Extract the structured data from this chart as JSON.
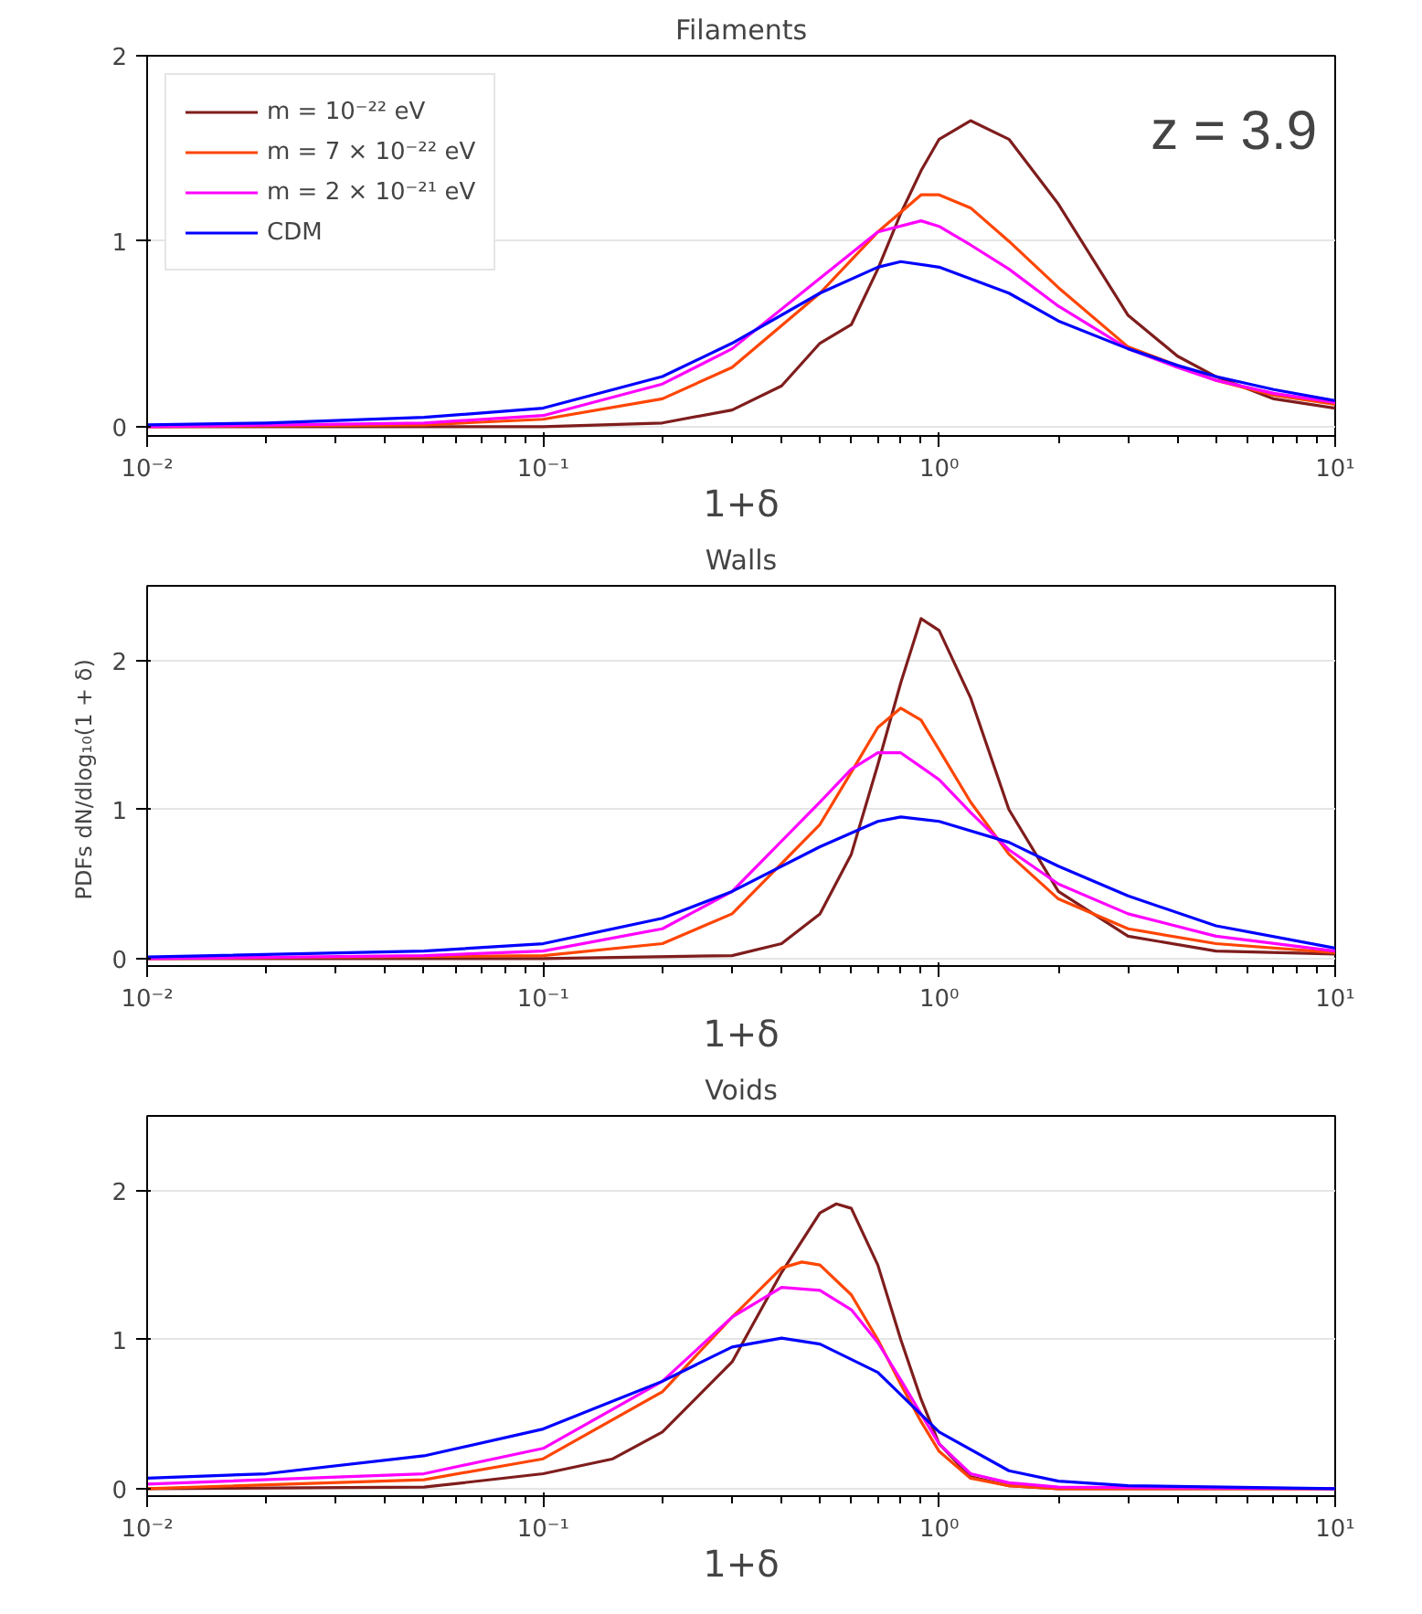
{
  "chart_data": [
    {
      "type": "line",
      "title": "Filaments",
      "xlabel": "1+δ",
      "log": "x",
      "xlim": [
        0.01,
        10
      ],
      "ylim": [
        -0.05,
        2
      ],
      "xticks": [
        {
          "value": 0.01,
          "label": "10⁻²"
        },
        {
          "value": 0.1,
          "label": "10⁻¹"
        },
        {
          "value": 1,
          "label": "10⁰"
        },
        {
          "value": 10,
          "label": "10¹"
        }
      ],
      "yticks": [
        0,
        1,
        2
      ],
      "grid": "y",
      "legend": "top left",
      "annotations": [
        "z = 3.9"
      ],
      "series": [
        {
          "name": "m = 10⁻²² eV",
          "color": "#7f1d1d",
          "x": [
            0.01,
            0.1,
            0.2,
            0.3,
            0.4,
            0.5,
            0.6,
            0.7,
            0.8,
            0.9,
            1.0,
            1.2,
            1.5,
            2,
            3,
            4,
            5,
            7,
            10
          ],
          "values": [
            0,
            0,
            0.02,
            0.09,
            0.22,
            0.45,
            0.55,
            0.85,
            1.15,
            1.38,
            1.55,
            1.65,
            1.55,
            1.2,
            0.6,
            0.38,
            0.27,
            0.15,
            0.1
          ]
        },
        {
          "name": "m = 7 × 10⁻²² eV",
          "color": "#ff4500",
          "x": [
            0.01,
            0.05,
            0.1,
            0.2,
            0.3,
            0.5,
            0.7,
            0.9,
            1.0,
            1.2,
            1.5,
            2,
            3,
            4,
            5,
            7,
            10
          ],
          "values": [
            0,
            0.01,
            0.04,
            0.15,
            0.32,
            0.72,
            1.05,
            1.25,
            1.25,
            1.18,
            1.0,
            0.75,
            0.43,
            0.33,
            0.25,
            0.17,
            0.12
          ]
        },
        {
          "name": "m = 2 × 10⁻²¹ eV",
          "color": "#ff00ff",
          "x": [
            0.01,
            0.05,
            0.1,
            0.2,
            0.3,
            0.5,
            0.7,
            0.9,
            1.0,
            1.2,
            1.5,
            2,
            3,
            4,
            5,
            7,
            10
          ],
          "values": [
            0,
            0.02,
            0.06,
            0.23,
            0.42,
            0.8,
            1.05,
            1.11,
            1.08,
            0.98,
            0.85,
            0.65,
            0.42,
            0.32,
            0.25,
            0.18,
            0.13
          ]
        },
        {
          "name": "CDM",
          "color": "#0000ff",
          "x": [
            0.01,
            0.02,
            0.05,
            0.1,
            0.2,
            0.3,
            0.5,
            0.7,
            0.8,
            1.0,
            1.5,
            2,
            3,
            4,
            5,
            7,
            10
          ],
          "values": [
            0.01,
            0.02,
            0.05,
            0.1,
            0.27,
            0.45,
            0.72,
            0.86,
            0.89,
            0.86,
            0.72,
            0.57,
            0.42,
            0.33,
            0.27,
            0.2,
            0.14
          ]
        }
      ]
    },
    {
      "type": "line",
      "title": "Walls",
      "xlabel": "1+δ",
      "ylabel": "PDFs  dN/dlog₁₀(1 + δ)",
      "log": "x",
      "xlim": [
        0.01,
        10
      ],
      "ylim": [
        -0.05,
        2.5
      ],
      "xticks": [
        {
          "value": 0.01,
          "label": "10⁻²"
        },
        {
          "value": 0.1,
          "label": "10⁻¹"
        },
        {
          "value": 1,
          "label": "10⁰"
        },
        {
          "value": 10,
          "label": "10¹"
        }
      ],
      "yticks": [
        0,
        1,
        2
      ],
      "grid": "y",
      "series": [
        {
          "color": "#7f1d1d",
          "x": [
            0.01,
            0.1,
            0.3,
            0.4,
            0.5,
            0.6,
            0.7,
            0.8,
            0.9,
            1.0,
            1.2,
            1.5,
            2,
            3,
            5,
            10
          ],
          "values": [
            0,
            0,
            0.02,
            0.1,
            0.3,
            0.7,
            1.3,
            1.85,
            2.28,
            2.2,
            1.75,
            1.0,
            0.45,
            0.15,
            0.05,
            0.03
          ]
        },
        {
          "color": "#ff4500",
          "x": [
            0.01,
            0.1,
            0.2,
            0.3,
            0.5,
            0.6,
            0.7,
            0.8,
            0.9,
            1.0,
            1.2,
            1.5,
            2,
            3,
            5,
            10
          ],
          "values": [
            0,
            0.02,
            0.1,
            0.3,
            0.9,
            1.25,
            1.55,
            1.68,
            1.6,
            1.4,
            1.05,
            0.7,
            0.4,
            0.2,
            0.1,
            0.04
          ]
        },
        {
          "color": "#ff00ff",
          "x": [
            0.01,
            0.05,
            0.1,
            0.2,
            0.3,
            0.5,
            0.6,
            0.7,
            0.8,
            1.0,
            1.2,
            1.5,
            2,
            3,
            5,
            10
          ],
          "values": [
            0,
            0.02,
            0.05,
            0.2,
            0.45,
            1.05,
            1.27,
            1.38,
            1.38,
            1.2,
            0.98,
            0.73,
            0.5,
            0.3,
            0.15,
            0.05
          ]
        },
        {
          "color": "#0000ff",
          "x": [
            0.01,
            0.05,
            0.1,
            0.2,
            0.3,
            0.5,
            0.7,
            0.8,
            1.0,
            1.5,
            2,
            3,
            5,
            10
          ],
          "values": [
            0.01,
            0.05,
            0.1,
            0.27,
            0.45,
            0.75,
            0.92,
            0.95,
            0.92,
            0.78,
            0.62,
            0.42,
            0.22,
            0.07
          ]
        }
      ]
    },
    {
      "type": "line",
      "title": "Voids",
      "xlabel": "1+δ",
      "log": "x",
      "xlim": [
        0.01,
        10
      ],
      "ylim": [
        -0.05,
        2.5
      ],
      "xticks": [
        {
          "value": 0.01,
          "label": "10⁻²"
        },
        {
          "value": 0.1,
          "label": "10⁻¹"
        },
        {
          "value": 1,
          "label": "10⁰"
        },
        {
          "value": 10,
          "label": "10¹"
        }
      ],
      "yticks": [
        0,
        1,
        2
      ],
      "grid": "y",
      "series": [
        {
          "color": "#7f1d1d",
          "x": [
            0.01,
            0.05,
            0.1,
            0.15,
            0.2,
            0.3,
            0.4,
            0.5,
            0.55,
            0.6,
            0.7,
            0.8,
            0.9,
            1.0,
            1.2,
            1.5,
            2,
            10
          ],
          "values": [
            0,
            0.01,
            0.1,
            0.2,
            0.38,
            0.85,
            1.45,
            1.85,
            1.91,
            1.88,
            1.5,
            1.0,
            0.6,
            0.3,
            0.08,
            0.02,
            0,
            0
          ]
        },
        {
          "color": "#ff4500",
          "x": [
            0.01,
            0.05,
            0.1,
            0.2,
            0.3,
            0.4,
            0.45,
            0.5,
            0.6,
            0.7,
            0.8,
            0.9,
            1.0,
            1.2,
            1.5,
            2,
            10
          ],
          "values": [
            0,
            0.06,
            0.2,
            0.65,
            1.15,
            1.48,
            1.52,
            1.5,
            1.3,
            1.0,
            0.7,
            0.45,
            0.25,
            0.07,
            0.02,
            0,
            0
          ]
        },
        {
          "color": "#ff00ff",
          "x": [
            0.01,
            0.05,
            0.1,
            0.2,
            0.3,
            0.4,
            0.5,
            0.6,
            0.7,
            0.8,
            0.9,
            1.0,
            1.2,
            1.5,
            2,
            10
          ],
          "values": [
            0.03,
            0.1,
            0.27,
            0.72,
            1.15,
            1.35,
            1.33,
            1.2,
            0.98,
            0.73,
            0.5,
            0.3,
            0.1,
            0.04,
            0.01,
            0
          ]
        },
        {
          "color": "#0000ff",
          "x": [
            0.01,
            0.02,
            0.05,
            0.1,
            0.2,
            0.3,
            0.4,
            0.5,
            0.7,
            1.0,
            1.5,
            2,
            3,
            10
          ],
          "values": [
            0.07,
            0.1,
            0.22,
            0.4,
            0.72,
            0.95,
            1.01,
            0.97,
            0.78,
            0.38,
            0.12,
            0.05,
            0.02,
            0
          ]
        }
      ]
    }
  ]
}
